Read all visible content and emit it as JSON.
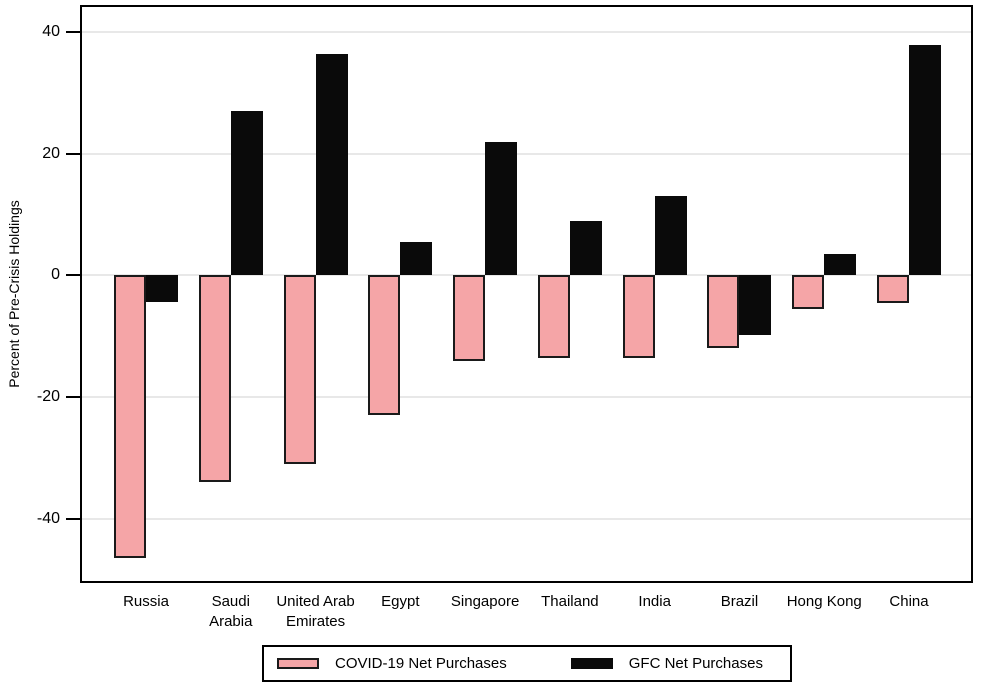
{
  "chart_data": {
    "type": "bar",
    "title": "",
    "xlabel": "",
    "ylabel": "Percent of Pre-Crisis Holdings",
    "ylim": [
      -50.6,
      44.5
    ],
    "yticks": [
      40,
      20,
      0,
      -20,
      -40
    ],
    "grid": true,
    "gridline_color": "#e8e8e8",
    "legend_position": "bottom-center",
    "categories": [
      "Russia",
      "Saudi Arabia",
      "United Arab Emirates",
      "Egypt",
      "Singapore",
      "Thailand",
      "India",
      "Brazil",
      "Hong Kong",
      "China"
    ],
    "categories_display": [
      [
        "Russia"
      ],
      [
        "Saudi",
        "Arabia"
      ],
      [
        "United Arab",
        "Emirates"
      ],
      [
        "Egypt"
      ],
      [
        "Singapore"
      ],
      [
        "Thailand"
      ],
      [
        "India"
      ],
      [
        "Brazil"
      ],
      [
        "Hong Kong"
      ],
      [
        "China"
      ]
    ],
    "series": [
      {
        "name": "COVID-19 Net Purchases",
        "color": "#f5a5a7",
        "border_color": "#1a1a1a",
        "values": [
          -46.5,
          -34,
          -31,
          -23,
          -14,
          -13.5,
          -13.5,
          -12,
          -5.5,
          -4.5
        ]
      },
      {
        "name": "GFC Net Purchases",
        "color": "#0a0a0a",
        "border_color": "#0a0a0a",
        "values": [
          -4.3,
          27,
          36.5,
          5.5,
          22,
          9,
          13,
          -9.8,
          3.5,
          38
        ]
      }
    ]
  }
}
